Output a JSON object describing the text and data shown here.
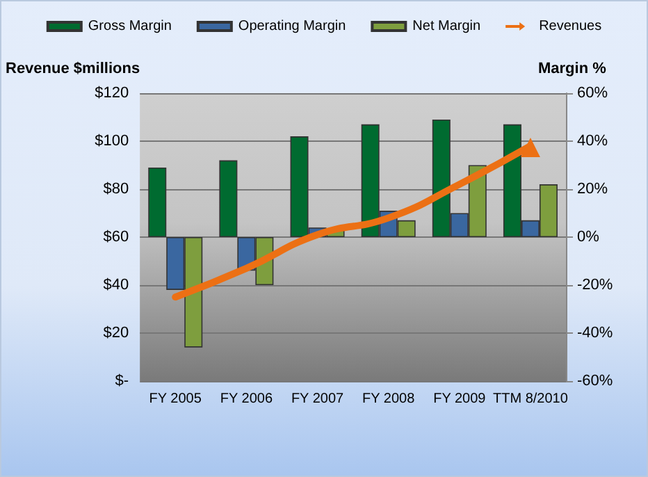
{
  "chart_data": {
    "type": "bar",
    "categories": [
      "FY 2005",
      "FY 2006",
      "FY 2007",
      "FY 2008",
      "FY 2009",
      "TTM 8/2010"
    ],
    "ylabel": "Revenue $millions",
    "y2label": "Margin %",
    "series": [
      {
        "name": "Gross Margin",
        "color": "#006b30",
        "axis": "y2",
        "values": [
          29,
          32,
          42,
          47,
          49,
          47
        ]
      },
      {
        "name": "Operating Margin",
        "color": "#3a67a0",
        "axis": "y2",
        "values": [
          -22,
          -14,
          4,
          11,
          10,
          7
        ]
      },
      {
        "name": "Net Margin",
        "color": "#7e9e3e",
        "axis": "y2",
        "values": [
          -46,
          -20,
          3,
          7,
          30,
          22
        ]
      },
      {
        "name": "Revenues",
        "type": "line",
        "color": "#ec7014",
        "marker": "none",
        "values": [
          35,
          47,
          61,
          68,
          82,
          98
        ]
      }
    ],
    "ylim": [
      0,
      120
    ],
    "yticks": [
      {
        "value": 0,
        "label": "$-"
      },
      {
        "value": 20,
        "label": "$20"
      },
      {
        "value": 40,
        "label": "$40"
      },
      {
        "value": 60,
        "label": "$60"
      },
      {
        "value": 80,
        "label": "$80"
      },
      {
        "value": 100,
        "label": "$100"
      },
      {
        "value": 120,
        "label": "$120"
      }
    ],
    "y2lim": [
      -60,
      60
    ],
    "y2ticks": [
      {
        "value": -60,
        "label": "-60%"
      },
      {
        "value": -40,
        "label": "-40%"
      },
      {
        "value": -20,
        "label": "-20%"
      },
      {
        "value": 0,
        "label": "0%"
      },
      {
        "value": 20,
        "label": "20%"
      },
      {
        "value": 40,
        "label": "40%"
      },
      {
        "value": 60,
        "label": "60%"
      }
    ],
    "grid": "y",
    "legend": "top"
  }
}
